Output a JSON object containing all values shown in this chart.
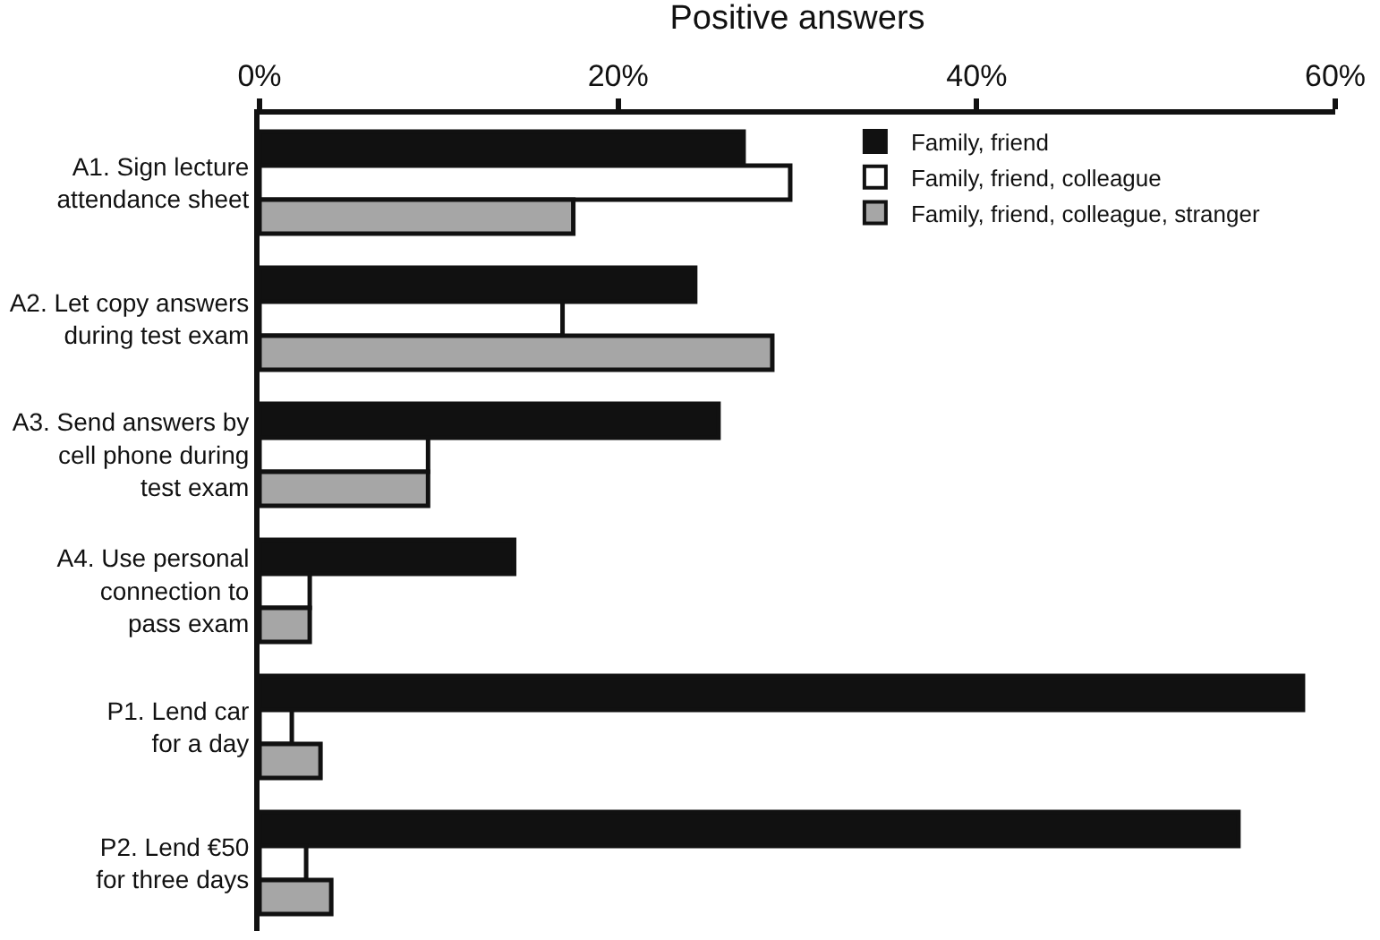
{
  "chart_data": {
    "type": "bar",
    "orientation": "horizontal",
    "xlabel": "Positive answers",
    "categories": [
      "A1. Sign lecture\nattendance sheet",
      "A2. Let copy answers\nduring test exam",
      "A3. Send answers by\ncell phone during\ntest exam",
      "A4. Use personal\nconnection to\npass exam",
      "P1. Lend car\nfor a day",
      "P2. Lend €50\nfor three days"
    ],
    "series": [
      {
        "name": "Family, friend",
        "color": "#111111",
        "values": [
          27.0,
          24.3,
          25.6,
          14.2,
          58.2,
          54.6
        ]
      },
      {
        "name": "Family, friend, colleague",
        "color": "#ffffff",
        "values": [
          29.6,
          16.9,
          9.4,
          2.8,
          1.8,
          2.6
        ]
      },
      {
        "name": "Family, friend, colleague, stranger",
        "color": "#a6a6a6",
        "values": [
          17.5,
          28.6,
          9.4,
          2.8,
          3.4,
          4.0
        ]
      }
    ],
    "xlim": [
      0,
      60
    ],
    "xticks": [
      {
        "value": 0,
        "label": "0%"
      },
      {
        "value": 20,
        "label": "20%"
      },
      {
        "value": 40,
        "label": "40%"
      },
      {
        "value": 60,
        "label": "60%"
      }
    ],
    "legend": "top right"
  }
}
